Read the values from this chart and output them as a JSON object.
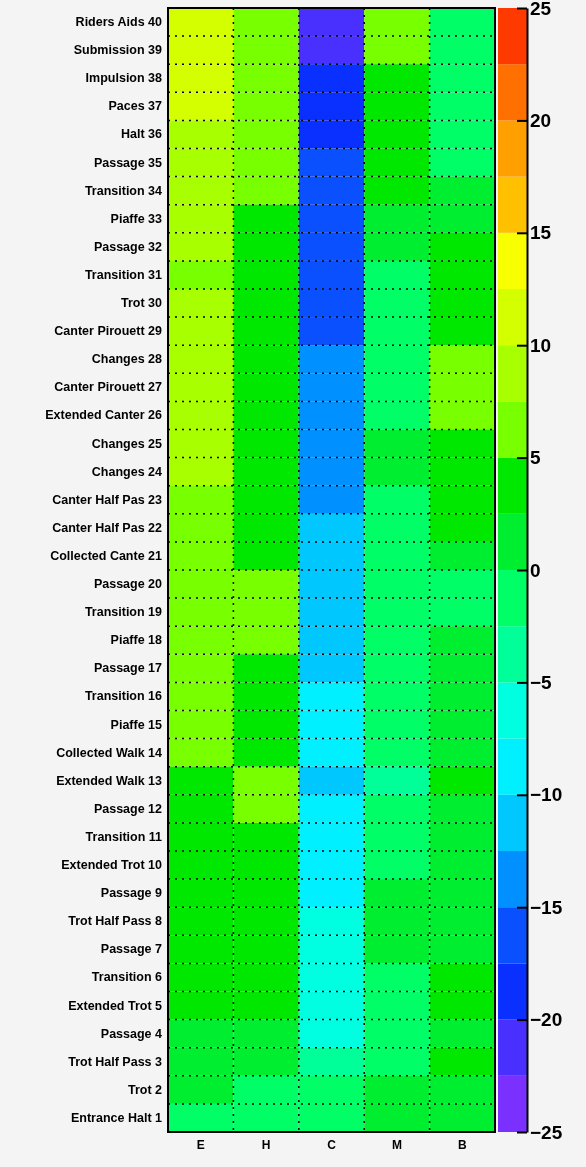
{
  "chart_data": {
    "type": "heatmap",
    "categories": [
      "E",
      "H",
      "C",
      "M",
      "B"
    ],
    "y_categories": [
      "Riders Aids 40",
      "Submission 39",
      "Impulsion 38",
      "Paces 37",
      "Halt 36",
      "Passage 35",
      "Transition 34",
      "Piaffe 33",
      "Passage 32",
      "Transition 31",
      "Trot 30",
      "Canter Pirouett 29",
      "Changes 28",
      "Canter Pirouett 27",
      "Extended Canter 26",
      "Changes 25",
      "Changes 24",
      "Canter Half Pas 23",
      "Canter Half Pas 22",
      "Collected Cante 21",
      "Passage 20",
      "Transition 19",
      "Piaffe 18",
      "Passage 17",
      "Transition 16",
      "Piaffe 15",
      "Collected Walk 14",
      "Extended Walk 13",
      "Passage 12",
      "Transition 11",
      "Extended Trot 10",
      "Passage 9",
      "Trot Half Pass 8",
      "Passage 7",
      "Transition 6",
      "Extended Trot 5",
      "Passage 4",
      "Trot Half Pass 3",
      "Trot 2",
      "Entrance Halt 1"
    ],
    "cells": [
      [
        11.25,
        6.25,
        -21.25,
        6.25,
        -1.25
      ],
      [
        11.25,
        6.25,
        -21.25,
        6.25,
        -1.25
      ],
      [
        11.25,
        6.25,
        -18.75,
        3.75,
        -1.25
      ],
      [
        11.25,
        6.25,
        -18.75,
        3.75,
        -1.25
      ],
      [
        8.75,
        6.25,
        -18.75,
        3.75,
        -1.25
      ],
      [
        8.75,
        6.25,
        -16.25,
        3.75,
        -1.25
      ],
      [
        8.75,
        6.25,
        -16.25,
        3.75,
        1.25
      ],
      [
        8.75,
        3.75,
        -16.25,
        1.25,
        1.25
      ],
      [
        8.75,
        3.75,
        -16.25,
        1.25,
        3.75
      ],
      [
        6.25,
        3.75,
        -16.25,
        -1.25,
        3.75
      ],
      [
        8.75,
        3.75,
        -16.25,
        -1.25,
        3.75
      ],
      [
        8.75,
        3.75,
        -16.25,
        -1.25,
        3.75
      ],
      [
        8.75,
        3.75,
        -13.75,
        -1.25,
        6.25
      ],
      [
        8.75,
        3.75,
        -13.75,
        -1.25,
        6.25
      ],
      [
        8.75,
        3.75,
        -13.75,
        -1.25,
        6.25
      ],
      [
        8.75,
        3.75,
        -13.75,
        1.25,
        3.75
      ],
      [
        8.75,
        3.75,
        -13.75,
        1.25,
        3.75
      ],
      [
        6.25,
        3.75,
        -13.75,
        -1.25,
        3.75
      ],
      [
        6.25,
        3.75,
        -11.25,
        -1.25,
        3.75
      ],
      [
        6.25,
        3.75,
        -11.25,
        -1.25,
        1.25
      ],
      [
        6.25,
        6.25,
        -11.25,
        -1.25,
        -1.25
      ],
      [
        6.25,
        6.25,
        -11.25,
        -1.25,
        -1.25
      ],
      [
        6.25,
        6.25,
        -11.25,
        -1.25,
        1.25
      ],
      [
        6.25,
        3.75,
        -11.25,
        -1.25,
        1.25
      ],
      [
        6.25,
        3.75,
        -8.75,
        -1.25,
        1.25
      ],
      [
        6.25,
        3.75,
        -8.75,
        -1.25,
        1.25
      ],
      [
        6.25,
        3.75,
        -8.75,
        -1.25,
        1.25
      ],
      [
        3.75,
        6.25,
        -11.25,
        -3.75,
        3.75
      ],
      [
        3.75,
        6.25,
        -8.75,
        -1.25,
        1.25
      ],
      [
        3.75,
        3.75,
        -8.75,
        -1.25,
        1.25
      ],
      [
        3.75,
        3.75,
        -8.75,
        -1.25,
        1.25
      ],
      [
        3.75,
        3.75,
        -8.75,
        1.25,
        1.25
      ],
      [
        3.75,
        3.75,
        -6.25,
        1.25,
        1.25
      ],
      [
        3.75,
        3.75,
        -6.25,
        1.25,
        1.25
      ],
      [
        3.75,
        3.75,
        -6.25,
        -1.25,
        3.75
      ],
      [
        3.75,
        3.75,
        -6.25,
        -1.25,
        3.75
      ],
      [
        1.25,
        1.25,
        -6.25,
        -1.25,
        1.25
      ],
      [
        1.25,
        1.25,
        -3.75,
        -1.25,
        3.75
      ],
      [
        1.25,
        -1.25,
        -1.25,
        1.25,
        1.25
      ],
      [
        -1.25,
        -1.25,
        -1.25,
        1.25,
        1.25
      ]
    ],
    "clim": [
      -25,
      25
    ],
    "cticks": [
      {
        "value": -25,
        "label": "−25"
      },
      {
        "value": -20,
        "label": "−20"
      },
      {
        "value": -15,
        "label": "−15"
      },
      {
        "value": -10,
        "label": "−10"
      },
      {
        "value": -5,
        "label": "−5"
      },
      0,
      5,
      10,
      15,
      20,
      25
    ],
    "grid": true
  }
}
